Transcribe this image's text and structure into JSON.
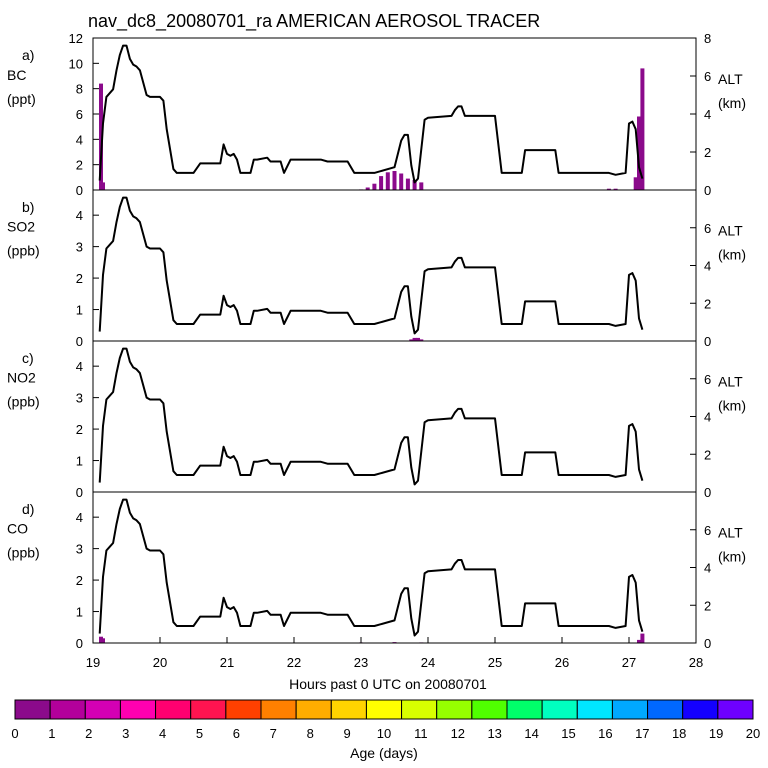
{
  "chart_data": {
    "type": "line",
    "title": "nav_dc8_20080701_ra AMERICAN AEROSOL TRACER",
    "xlabel": "Hours past 0 UTC on 20080701",
    "xlim": [
      19,
      28
    ],
    "x_ticks": [
      "19",
      "20",
      "21",
      "22",
      "23",
      "24",
      "25",
      "26",
      "27",
      "28"
    ],
    "altitude_axis": {
      "label": "ALT",
      "unit": "(km)",
      "ticks": [
        "0",
        "2",
        "4",
        "6",
        "8"
      ],
      "ylim": [
        0,
        8
      ]
    },
    "altitude_km": {
      "x": [
        19.1,
        19.15,
        19.2,
        19.25,
        19.3,
        19.35,
        19.4,
        19.45,
        19.5,
        19.55,
        19.6,
        19.65,
        19.7,
        19.8,
        19.85,
        19.9,
        20.0,
        20.05,
        20.1,
        20.2,
        20.25,
        20.3,
        20.5,
        20.6,
        20.9,
        20.95,
        21.0,
        21.05,
        21.1,
        21.15,
        21.2,
        21.35,
        21.4,
        21.45,
        21.6,
        21.65,
        21.8,
        21.85,
        21.95,
        22.4,
        22.5,
        22.8,
        22.9,
        23.2,
        23.5,
        23.6,
        23.65,
        23.7,
        23.75,
        23.8,
        23.85,
        23.95,
        24.0,
        24.35,
        24.4,
        24.45,
        24.5,
        24.55,
        24.6,
        25.0,
        25.1,
        25.4,
        25.45,
        25.9,
        25.95,
        26.2,
        26.25,
        26.7,
        26.8,
        26.95,
        27.0,
        27.05,
        27.1,
        27.15,
        27.2
      ],
      "y": [
        0.5,
        3.5,
        4.9,
        5.1,
        5.3,
        6.3,
        7.1,
        7.6,
        7.6,
        6.9,
        6.6,
        6.5,
        6.3,
        5.0,
        4.9,
        4.9,
        4.9,
        4.7,
        3.2,
        1.1,
        0.9,
        0.9,
        0.9,
        1.4,
        1.4,
        2.4,
        1.9,
        1.8,
        1.9,
        1.6,
        0.9,
        0.9,
        1.6,
        1.6,
        1.7,
        1.5,
        1.5,
        0.9,
        1.6,
        1.6,
        1.5,
        1.5,
        0.9,
        0.9,
        1.2,
        2.6,
        2.9,
        2.9,
        1.3,
        0.4,
        0.6,
        3.7,
        3.8,
        3.9,
        4.2,
        4.4,
        4.4,
        3.9,
        3.9,
        3.9,
        0.9,
        0.9,
        2.1,
        2.1,
        0.9,
        0.9,
        0.9,
        0.9,
        0.8,
        0.9,
        3.5,
        3.6,
        3.2,
        1.2,
        0.6
      ]
    },
    "colorbar": {
      "label": "Age (days)",
      "ticks": [
        "0",
        "1",
        "2",
        "3",
        "4",
        "5",
        "6",
        "7",
        "8",
        "9",
        "10",
        "11",
        "12",
        "13",
        "14",
        "15",
        "16",
        "17",
        "18",
        "19",
        "20"
      ],
      "colors": [
        "#8b0a8b",
        "#b3009b",
        "#d400b4",
        "#ff00b0",
        "#ff0070",
        "#ff1450",
        "#ff4000",
        "#ff8000",
        "#ffad00",
        "#ffd400",
        "#ffff00",
        "#d8ff00",
        "#96ff00",
        "#50ff00",
        "#00ff6a",
        "#00ffc0",
        "#00e6ff",
        "#00a8ff",
        "#0068ff",
        "#1400ff",
        "#6e00ff"
      ]
    },
    "panels": [
      {
        "tag": "a)",
        "species": "BC",
        "unit": "(ppt)",
        "ylim": [
          0,
          12
        ],
        "y_ticks": [
          "0",
          "2",
          "4",
          "6",
          "8",
          "10",
          "12"
        ],
        "series": [
          {
            "age_days": "0-1",
            "x": [
              19.12,
              19.15,
              23.0,
              23.1,
              23.2,
              23.3,
              23.4,
              23.5,
              23.6,
              23.7,
              23.8,
              23.9,
              26.7,
              26.8,
              27.1,
              27.15,
              27.2
            ],
            "values": [
              8.4,
              0.6,
              0.05,
              0.2,
              0.5,
              1.1,
              1.4,
              1.5,
              1.3,
              0.9,
              0.8,
              0.6,
              0.1,
              0.1,
              1.0,
              5.8,
              9.6
            ]
          }
        ]
      },
      {
        "tag": "b)",
        "species": "SO2",
        "unit": "(ppb)",
        "ylim": [
          0,
          4.8
        ],
        "y_ticks": [
          "0",
          "1",
          "2",
          "3",
          "4"
        ],
        "series": [
          {
            "age_days": "0-1",
            "x": [
              23.75,
              23.8,
              23.85,
              23.9
            ],
            "values": [
              0.05,
              0.1,
              0.1,
              0.05
            ]
          }
        ]
      },
      {
        "tag": "c)",
        "species": "NO2",
        "unit": "(ppb)",
        "ylim": [
          0,
          4.8
        ],
        "y_ticks": [
          "0",
          "1",
          "2",
          "3",
          "4"
        ],
        "series": []
      },
      {
        "tag": "d)",
        "species": "CO",
        "unit": "(ppb)",
        "ylim": [
          0,
          4.8
        ],
        "y_ticks": [
          "0",
          "1",
          "2",
          "3",
          "4"
        ],
        "series": [
          {
            "age_days": "0-1",
            "x": [
              19.12,
              19.15,
              23.0,
              23.5,
              23.9,
              27.15,
              27.2
            ],
            "values": [
              0.2,
              0.15,
              0.02,
              0.03,
              0.02,
              0.1,
              0.3
            ]
          }
        ]
      }
    ]
  }
}
